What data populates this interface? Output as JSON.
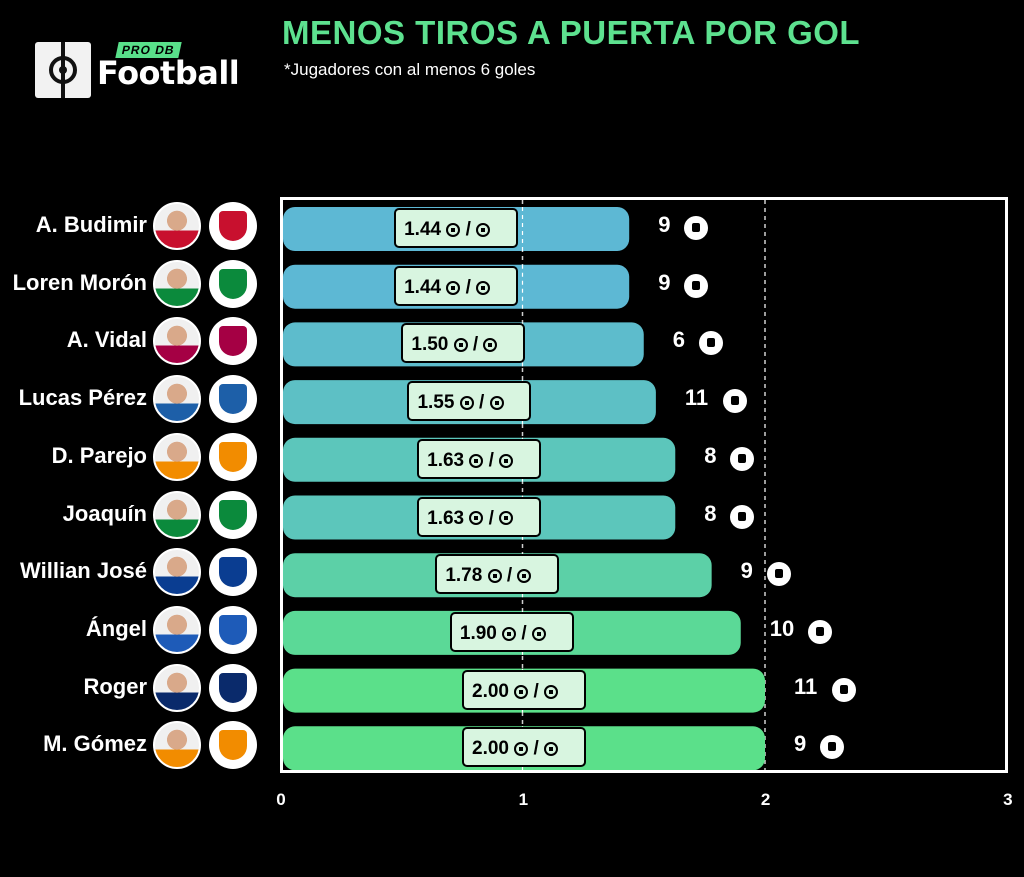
{
  "header": {
    "title": "MENOS TIROS A PUERTA POR GOL",
    "subtitle": "*Jugadores con al menos 6 goles"
  },
  "logo": {
    "pro_label": "PRO DB",
    "word": "Football"
  },
  "colors": {
    "title": "#5de18f",
    "bar_low": "#5db8d4",
    "bar_high": "#5be08a",
    "label_bg": "#d8f5e0",
    "background": "#000000"
  },
  "chart_data": {
    "type": "bar",
    "orientation": "horizontal",
    "title": "MENOS TIROS A PUERTA POR GOL",
    "subtitle": "*Jugadores con al menos 6 goles",
    "xlabel": "",
    "ylabel": "",
    "xlim": [
      0,
      3
    ],
    "xticks": [
      "0",
      "1",
      "2",
      "3"
    ],
    "grid_lines_x": [
      1,
      2
    ],
    "categories": [
      "A. Budimir",
      "Loren Morón",
      "A. Vidal",
      "Lucas Pérez",
      "D. Parejo",
      "Joaquín",
      "Willian José",
      "Ángel",
      "Roger",
      "M. Gómez"
    ],
    "values": [
      1.44,
      1.44,
      1.5,
      1.55,
      1.63,
      1.63,
      1.78,
      1.9,
      2.0,
      2.0
    ],
    "value_labels": [
      "1.44",
      "1.44",
      "1.50",
      "1.55",
      "1.63",
      "1.63",
      "1.78",
      "1.90",
      "2.00",
      "2.00"
    ],
    "label_suffix": "/",
    "goals": [
      "9",
      "9",
      "6",
      "11",
      "8",
      "8",
      "9",
      "10",
      "11",
      "9"
    ],
    "team_colors": [
      "#c8102e",
      "#0b8a3c",
      "#a50044",
      "#1d5fa8",
      "#f28c00",
      "#0b8a3c",
      "#0a3d91",
      "#1e5bb8",
      "#0a2a6b",
      "#f28c00"
    ]
  }
}
